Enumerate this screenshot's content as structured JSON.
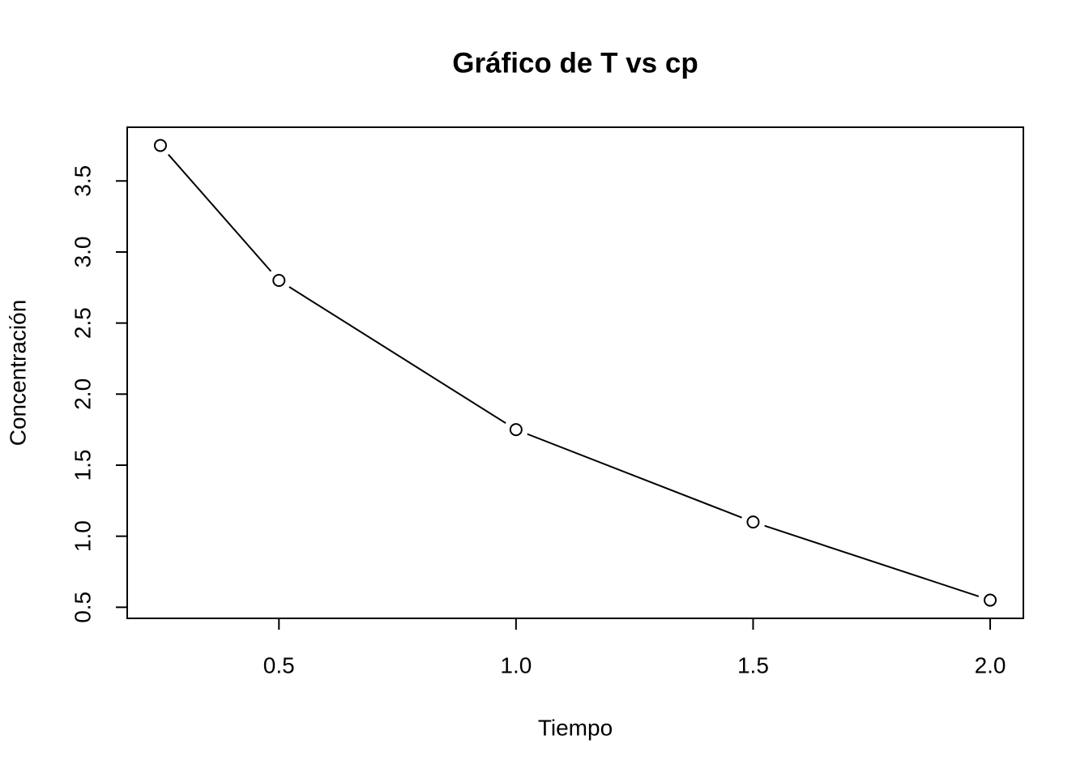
{
  "chart_data": {
    "type": "line",
    "title": "Gráfico de T vs cp",
    "x_label": "Tiempo",
    "y_label": "Concentración",
    "x": [
      0.25,
      0.5,
      1.0,
      1.5,
      2.0
    ],
    "series": [
      {
        "name": "cp",
        "color": "#000000",
        "values": [
          3.75,
          2.8,
          1.75,
          1.1,
          0.55
        ]
      }
    ],
    "xlim": [
      0.18,
      2.07
    ],
    "ylim": [
      0.422,
      3.878
    ],
    "xticks": [
      0.5,
      {
        "value": 1.0,
        "label": "1.0"
      },
      1.5,
      {
        "value": 2.0,
        "label": "2.0"
      }
    ],
    "yticks": [
      0.5,
      {
        "value": 1.0,
        "label": "1.0"
      },
      1.5,
      {
        "value": 2.0,
        "label": "2.0"
      },
      2.5,
      {
        "value": 3.0,
        "label": "3.0"
      },
      3.5
    ],
    "grid": false
  }
}
